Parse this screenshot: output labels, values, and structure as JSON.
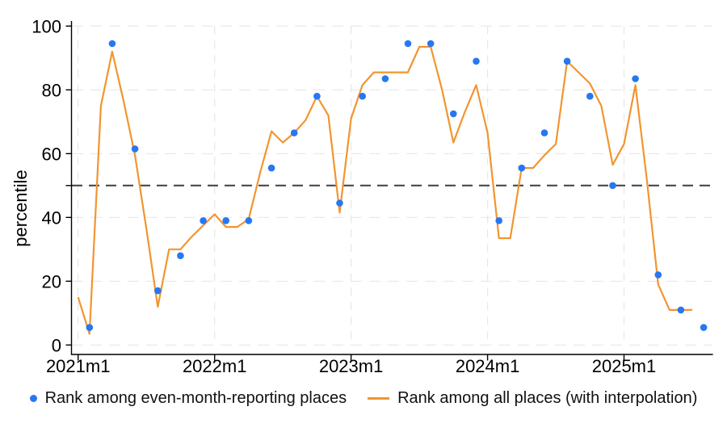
{
  "chart_data": {
    "type": "line+scatter",
    "title": "",
    "xlabel": "",
    "ylabel": "percentile",
    "ylim": [
      0,
      100
    ],
    "y_ticks": [
      0,
      20,
      40,
      60,
      80,
      100
    ],
    "extra_unlabeled_y_tick": 50,
    "ref_line_value": 50,
    "grid": true,
    "legend_position": "bottom",
    "x_unit": "months indexed from 2021m1 (index 0)",
    "x_ticks": [
      {
        "index": 0,
        "label": "2021m1"
      },
      {
        "index": 12,
        "label": "2022m1"
      },
      {
        "index": 24,
        "label": "2023m1"
      },
      {
        "index": 36,
        "label": "2024m1"
      },
      {
        "index": 48,
        "label": "2025m1"
      }
    ],
    "colors": {
      "scatter_blue": "#2777F2",
      "line_orange": "#F2952F",
      "grid": "#E7E7E7",
      "ref_line": "#3F3F3F",
      "axis": "#000000",
      "text": "#000000"
    },
    "series": [
      {
        "name": "Rank among even-month-reporting places",
        "type": "scatter",
        "color_key": "scatter_blue",
        "points": [
          {
            "month": "2021m2",
            "index": 1,
            "value": 5.5
          },
          {
            "month": "2021m4",
            "index": 3,
            "value": 94.5
          },
          {
            "month": "2021m6",
            "index": 5,
            "value": 61.5
          },
          {
            "month": "2021m8",
            "index": 7,
            "value": 17
          },
          {
            "month": "2021m10",
            "index": 9,
            "value": 28
          },
          {
            "month": "2021m12",
            "index": 11,
            "value": 39
          },
          {
            "month": "2022m2",
            "index": 13,
            "value": 39
          },
          {
            "month": "2022m4",
            "index": 15,
            "value": 39
          },
          {
            "month": "2022m6",
            "index": 17,
            "value": 55.5
          },
          {
            "month": "2022m8",
            "index": 19,
            "value": 66.5
          },
          {
            "month": "2022m10",
            "index": 21,
            "value": 78
          },
          {
            "month": "2022m12",
            "index": 23,
            "value": 44.5
          },
          {
            "month": "2023m2",
            "index": 25,
            "value": 78
          },
          {
            "month": "2023m4",
            "index": 27,
            "value": 83.5
          },
          {
            "month": "2023m6",
            "index": 29,
            "value": 94.5
          },
          {
            "month": "2023m8",
            "index": 31,
            "value": 94.5
          },
          {
            "month": "2023m10",
            "index": 33,
            "value": 72.5
          },
          {
            "month": "2023m12",
            "index": 35,
            "value": 89
          },
          {
            "month": "2024m2",
            "index": 37,
            "value": 39
          },
          {
            "month": "2024m4",
            "index": 39,
            "value": 55.5
          },
          {
            "month": "2024m6",
            "index": 41,
            "value": 66.5
          },
          {
            "month": "2024m8",
            "index": 43,
            "value": 89
          },
          {
            "month": "2024m10",
            "index": 45,
            "value": 78
          },
          {
            "month": "2024m12",
            "index": 47,
            "value": 50
          },
          {
            "month": "2025m2",
            "index": 49,
            "value": 83.5
          },
          {
            "month": "2025m4",
            "index": 51,
            "value": 22
          },
          {
            "month": "2025m6",
            "index": 53,
            "value": 11
          },
          {
            "month": "2025m8",
            "index": 55,
            "value": 5.5
          }
        ]
      },
      {
        "name": "Rank among all places (with interpolation)",
        "type": "line",
        "color_key": "line_orange",
        "start_month": "2021m1",
        "start_index": 0,
        "values": [
          15,
          3.5,
          75,
          92,
          76.5,
          59.5,
          36.5,
          12,
          30,
          30,
          34,
          37.5,
          41,
          37,
          37,
          39.5,
          54,
          67,
          63.5,
          66.5,
          70.5,
          78,
          72,
          41.5,
          71,
          81.5,
          85.5,
          85.5,
          85.5,
          85.5,
          93.5,
          93.5,
          80,
          63.5,
          73,
          81.5,
          66.5,
          33.5,
          33.5,
          55.5,
          55.5,
          59.5,
          63,
          89,
          85.5,
          82,
          75,
          56.5,
          63,
          81.5,
          52,
          19,
          11,
          11,
          11
        ]
      }
    ]
  }
}
